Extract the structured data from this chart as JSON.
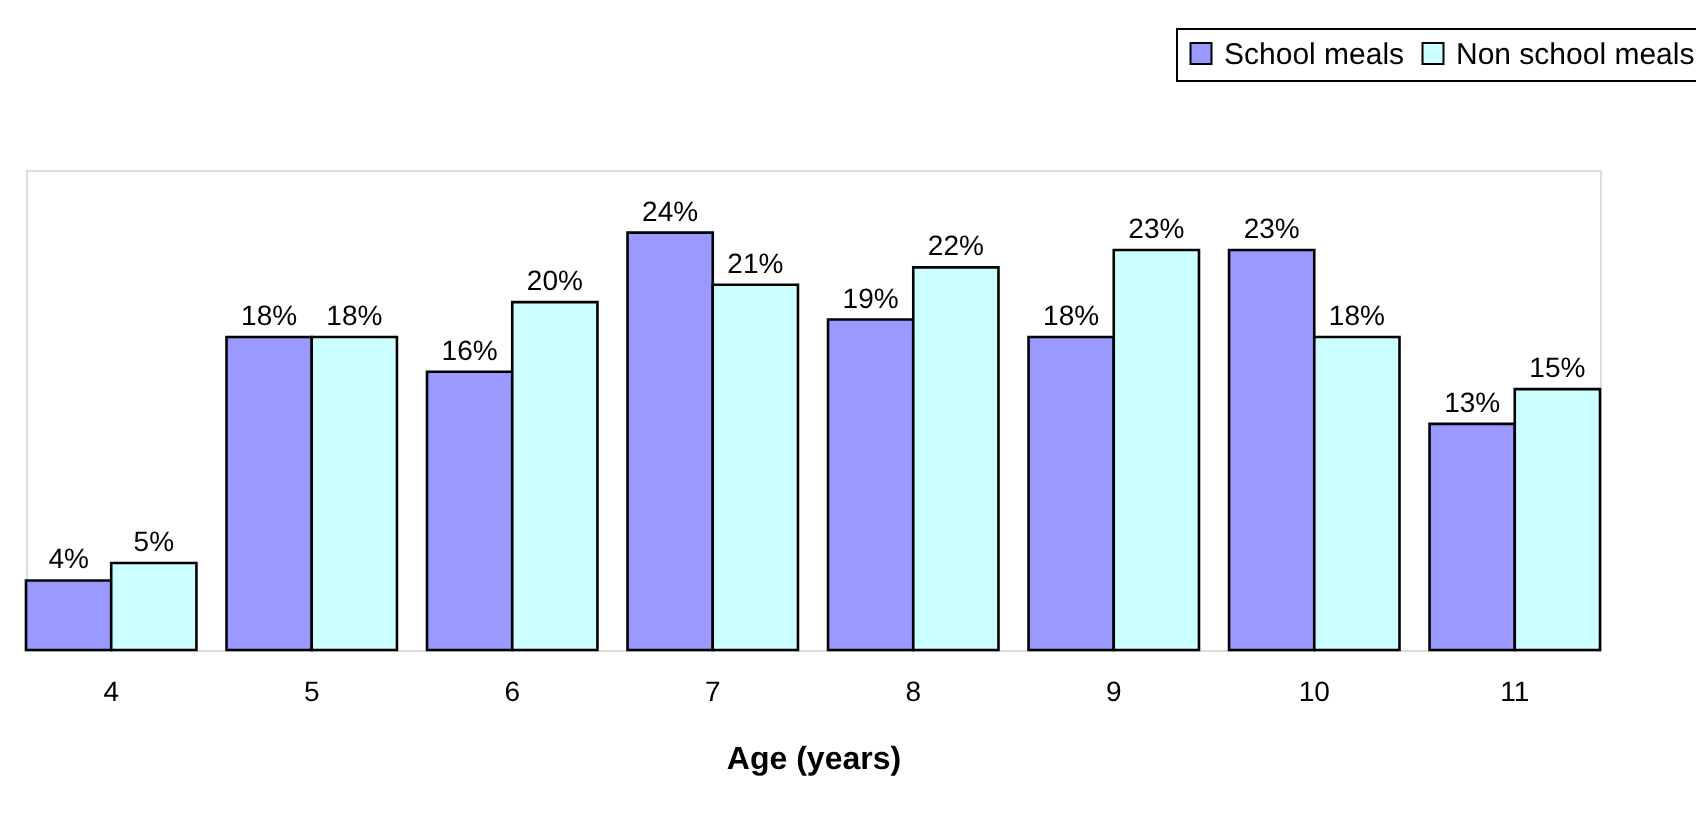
{
  "chart_data": {
    "type": "bar",
    "xlabel": "Age (years)",
    "categories": [
      "4",
      "5",
      "6",
      "7",
      "8",
      "9",
      "10",
      "11"
    ],
    "series": [
      {
        "name": "School meals",
        "color": "#9999ff",
        "values": [
          4,
          18,
          16,
          24,
          19,
          18,
          23,
          13
        ],
        "value_labels": [
          "4%",
          "18%",
          "16%",
          "24%",
          "19%",
          "18%",
          "23%",
          "13%"
        ]
      },
      {
        "name": "Non school meals",
        "color": "#ccffff",
        "values": [
          5,
          18,
          20,
          21,
          22,
          23,
          18,
          15
        ],
        "value_labels": [
          "5%",
          "18%",
          "20%",
          "21%",
          "22%",
          "23%",
          "18%",
          "15%"
        ]
      }
    ],
    "tick_labels": "x",
    "legend": "top right",
    "grid": false
  }
}
